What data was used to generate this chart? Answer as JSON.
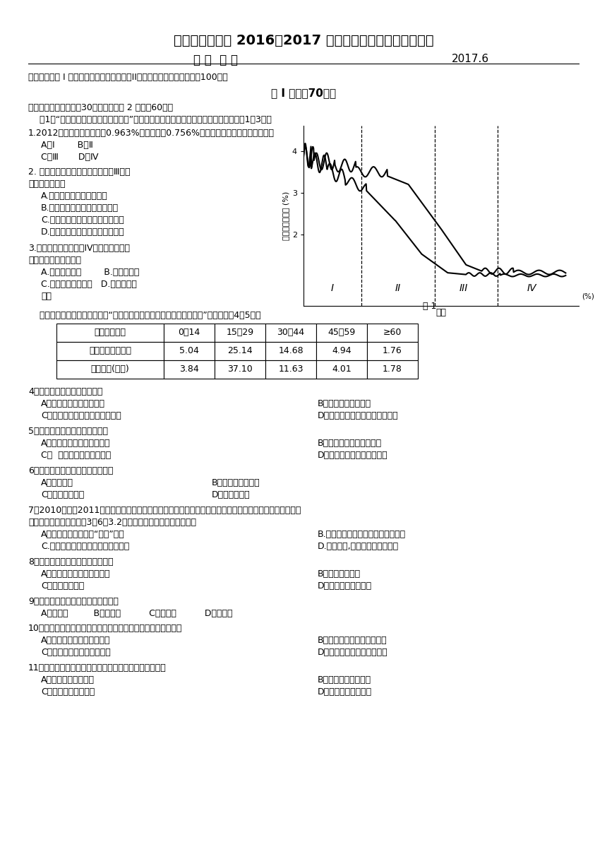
{
  "title1": "兴化市第一中学 2016～2017 学年度第二学期期末学情调研",
  "title2": "高 一  地 理",
  "title3": "2017.6",
  "intro": "本试卷分为第 I 卷（选择题、判断题）和第II卷（综合题）两部分，满分100分。",
  "section1": "第 I 卷（內70分）",
  "part1_title": "一、单选题（本大题內30小题，每小题 2 分，內60分）",
  "part1_intro": "    图1为“人口增长模式及其转变示意图”，图中序号表示人口增长的不同阶段。读图完成1～3题。",
  "q1": "1.2012年某市人口出生率为0.963%，死亡率为0.756%。目前该市人口增长所处阶段是",
  "q1_opt1": "A．Ⅰ        B．Ⅱ",
  "q1_opt2": "C．Ⅲ       D．Ⅳ",
  "q2_line1": "2. 下列事件或现象在人口增长模式Ⅲ阶段",
  "q2_line2": "更经常出现的是",
  "q2_opt1": "A.孩子们有多个亲兄弟姐妹",
  "q2_opt2": "B.举办金婚庆祝活动的夫妇很多",
  "q2_opt3": "C.越来越多的人迁移到大城市生活",
  "q2_opt4": "D.一个母亲的第六个孩子死于伤寒",
  "q3_line1": "3.人口增长模式处在第IV阶段的一类国家",
  "q3_line2": "面临的人口问题主要是",
  "q3_opt1": "A.人口增长过快        B.人口老龄化",
  "q3_opt2": "C.人口性别比不平衡   D.严重的就业",
  "q3_opt3": "压力",
  "table_intro": "    下表是我国第五次人口普查时“江苏省某市迁入人口年龄及性别统计表”。据此回哄4～5题。",
  "table_headers": [
    "年龄段（岁）",
    "0～14",
    "15～29",
    "30～44",
    "45～59",
    "≥60"
  ],
  "table_row1": [
    "男性人口（万人）",
    "5.04",
    "25.14",
    "14.68",
    "4.94",
    "1.76"
  ],
  "table_row2": [
    "女性人口(万人)",
    "3.84",
    "37.10",
    "11.63",
    "4.01",
    "1.78"
  ],
  "q4": "4．该市迁入人口的主要特征是",
  "q4_opt1": "A．男性人口多于女性人口",
  "q4_opt2": "B．以青壮年人口为主",
  "q4_opt3": "C．人口迁移主要受政治因素影响",
  "q4_opt4": "D．与该市原有人口年龄构成相似",
  "q5": "5．迁入人口对该市的积极影响是",
  "q5_opt1": "A．缓和了当地就业紧张局面",
  "q5_opt2": "B．制约了该市的经济发展",
  "q5_opt3": "C．  促进了该市的经济发展",
  "q5_opt4": "D．减少了该市的被抒养人口",
  "q6": "6．制约环境人口容量的首要因素是",
  "q6_opt1": "A、资源状况",
  "q6_opt2": "B、人口的消费水平",
  "q6_opt3": "C、对外开放程度",
  "q6_opt4": "D、人口的素质",
  "q7_line1": "7．2010年底至2011年春初，埃及、利比亚等国家的大量外来人口纷纷撤离该国家回国，其中我国采用海陆",
  "q7_line2": "空全方位撤侨作工作，于3月6日3.2万余人全部安全回国。其原因是",
  "q7_opt1": "A．该国发生大范围的“流感”灾害",
  "q7_opt2": "B.石油资源大量开采，出现枯竭现象",
  "q7_opt3": "C.此时期发生了大范围的沙尘暴灾害",
  "q7_opt4": "D.政局动荡,使生活环境遇到破坏",
  "q8": "8．衡量城市化水平最重要的指标是",
  "q8_opt1": "A．城市人口占总人口的比重",
  "q8_opt2": "B．城市人口数量",
  "q8_opt3": "C．城市用地规模",
  "q8_opt4": "D．城乡人均收入高低",
  "q9": "9．城市中最为广泛的土地利用形式是",
  "q9_opts": "A．商业区         B．工业区          C．住宅区          D．文化区",
  "q10": "10．从经济因素考虑，城市的各种功能区由市中心到郊区依次为",
  "q10_opt1": "A．工业区、商业区、工业区",
  "q10_opt2": "B．住宅区、商业区、工业区",
  "q10_opt3": "C．商业区、住宅区、工业区",
  "q10_opt4": "D．商业区、工业区、住宅区",
  "q11": "11．南京、泰州和上海三城市服务范围由小到大的排列是",
  "q11_opt1": "A．上海、南京、泰州",
  "q11_opt2": "B．泰州、南京、上海",
  "q11_opt3": "C．泰州、上海、南京",
  "q11_opt4": "D．南京、上海、泰州",
  "bg_color": "#ffffff"
}
